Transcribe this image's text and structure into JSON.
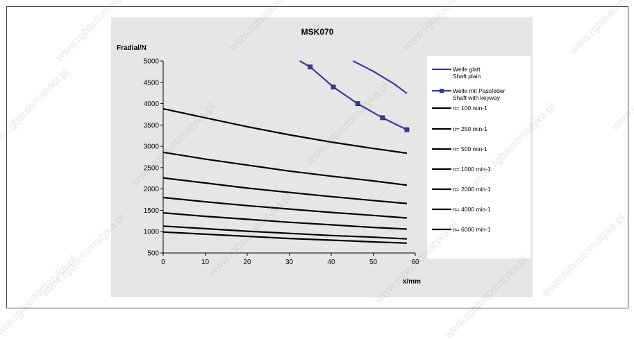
{
  "chart_data": {
    "type": "line",
    "title": "MSK070",
    "ylabel": "Fradial/N",
    "xlabel": "x/mm",
    "xlim": [
      0,
      60
    ],
    "ylim": [
      500,
      5000
    ],
    "x_ticks": [
      "0",
      "10",
      "20",
      "30",
      "40",
      "50",
      "60"
    ],
    "y_ticks": [
      "500",
      "1000",
      "1500",
      "2000",
      "2500",
      "3000",
      "3500",
      "4000",
      "4500",
      "5000"
    ],
    "grid": false,
    "legend_position": "right",
    "series": [
      {
        "name": "Welle glatt\nShaft plain",
        "color": "#3a3a9a",
        "marker": "none",
        "points": [
          [
            45.2,
            5000
          ],
          [
            50,
            4760
          ],
          [
            55,
            4460
          ],
          [
            58,
            4240
          ]
        ]
      },
      {
        "name": "Welle mit Passfeder\nShaft with keyway",
        "color": "#3a3a9a",
        "marker": "square",
        "points": [
          [
            32.5,
            5000
          ],
          [
            35,
            4860
          ],
          [
            40.5,
            4390
          ],
          [
            46.3,
            4000
          ],
          [
            52.2,
            3670
          ],
          [
            58,
            3390
          ]
        ]
      },
      {
        "name": "n= 100 min-1",
        "color": "#000000",
        "marker": "none",
        "points": [
          [
            0,
            3880
          ],
          [
            10,
            3670
          ],
          [
            20,
            3460
          ],
          [
            30,
            3270
          ],
          [
            40,
            3100
          ],
          [
            50,
            2950
          ],
          [
            58,
            2840
          ]
        ]
      },
      {
        "name": "n= 250 min-1",
        "color": "#000000",
        "marker": "none",
        "points": [
          [
            0,
            2860
          ],
          [
            10,
            2700
          ],
          [
            20,
            2560
          ],
          [
            30,
            2420
          ],
          [
            40,
            2300
          ],
          [
            50,
            2190
          ],
          [
            58,
            2090
          ]
        ]
      },
      {
        "name": "n= 500 min-1",
        "color": "#000000",
        "marker": "none",
        "points": [
          [
            0,
            2260
          ],
          [
            10,
            2140
          ],
          [
            20,
            2020
          ],
          [
            30,
            1920
          ],
          [
            40,
            1820
          ],
          [
            50,
            1730
          ],
          [
            58,
            1660
          ]
        ]
      },
      {
        "name": "n= 1000 min-1",
        "color": "#000000",
        "marker": "none",
        "points": [
          [
            0,
            1800
          ],
          [
            10,
            1700
          ],
          [
            20,
            1610
          ],
          [
            30,
            1530
          ],
          [
            40,
            1450
          ],
          [
            50,
            1380
          ],
          [
            58,
            1320
          ]
        ]
      },
      {
        "name": "n= 2000 min-1",
        "color": "#000000",
        "marker": "none",
        "points": [
          [
            0,
            1440
          ],
          [
            10,
            1360
          ],
          [
            20,
            1290
          ],
          [
            30,
            1220
          ],
          [
            40,
            1160
          ],
          [
            50,
            1100
          ],
          [
            58,
            1060
          ]
        ]
      },
      {
        "name": "n= 4000 min-1",
        "color": "#000000",
        "marker": "none",
        "points": [
          [
            0,
            1130
          ],
          [
            10,
            1070
          ],
          [
            20,
            1010
          ],
          [
            30,
            960
          ],
          [
            40,
            910
          ],
          [
            50,
            870
          ],
          [
            58,
            830
          ]
        ]
      },
      {
        "name": "n= 6000 min-1",
        "color": "#000000",
        "marker": "none",
        "points": [
          [
            0,
            990
          ],
          [
            10,
            940
          ],
          [
            20,
            890
          ],
          [
            30,
            840
          ],
          [
            40,
            800
          ],
          [
            50,
            760
          ],
          [
            58,
            730
          ]
        ]
      }
    ]
  },
  "watermark": {
    "text": "www.rgbautomatyka.pl"
  }
}
